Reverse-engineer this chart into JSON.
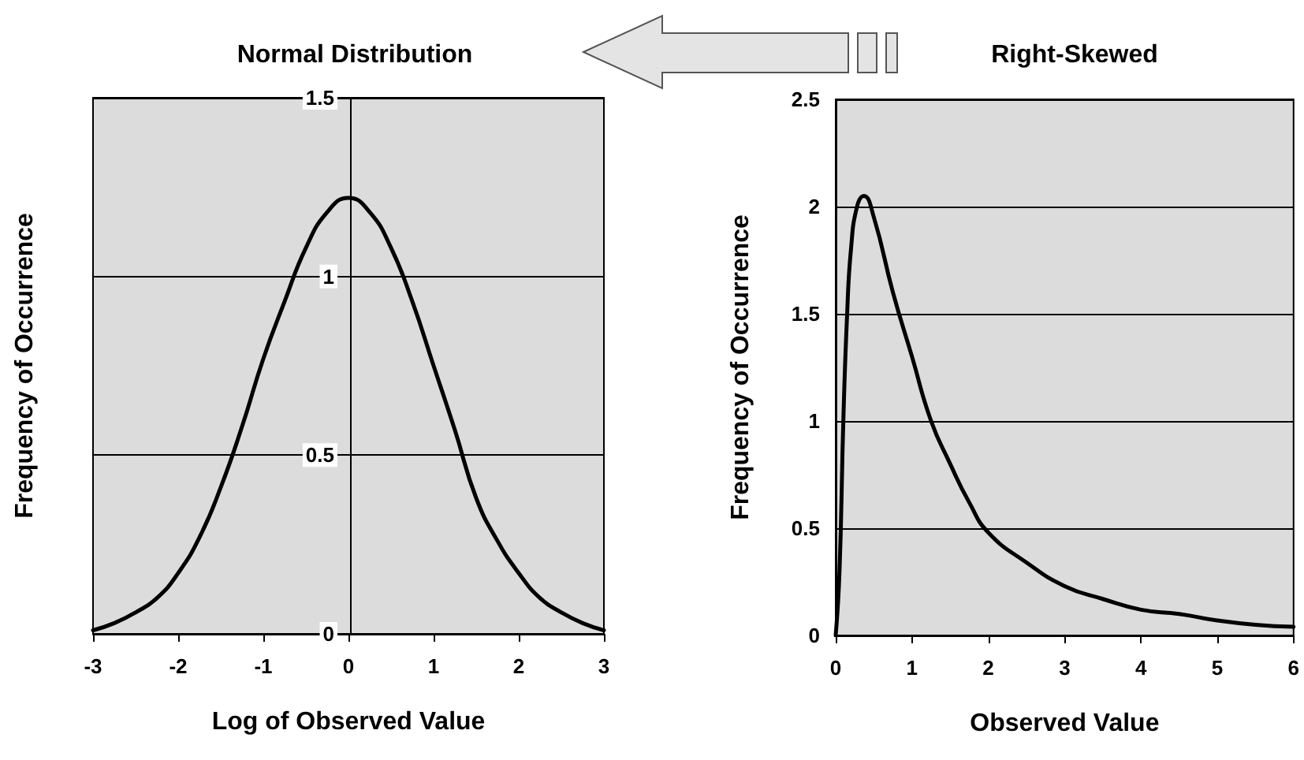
{
  "chart_data": [
    {
      "type": "line",
      "title": "Normal Distribution",
      "xlabel": "Log of Observed Value",
      "ylabel": "Frequency of Occurrence",
      "x": [
        -3,
        -2.75,
        -2.5,
        -2.25,
        -2,
        -1.75,
        -1.5,
        -1.25,
        -1,
        -0.75,
        -0.5,
        -0.25,
        0,
        0.25,
        0.5,
        0.75,
        1,
        1.25,
        1.5,
        1.75,
        2,
        2.25,
        2.5,
        2.75,
        3
      ],
      "series": [
        {
          "color": "#000000",
          "values": [
            0.01,
            0.03,
            0.06,
            0.1,
            0.17,
            0.27,
            0.41,
            0.58,
            0.77,
            0.93,
            1.08,
            1.18,
            1.22,
            1.18,
            1.08,
            0.93,
            0.75,
            0.57,
            0.38,
            0.26,
            0.17,
            0.1,
            0.06,
            0.03,
            0.01
          ]
        }
      ],
      "xlim": [
        -3,
        3
      ],
      "xticks": [
        -3,
        -2,
        -1,
        0,
        1,
        2,
        3
      ],
      "ylim": [
        0,
        1.5
      ],
      "yticks": [
        0,
        0.5,
        1,
        1.5
      ],
      "grid": "y",
      "marker": "none",
      "line_style": "solid"
    },
    {
      "type": "line",
      "title": "Right-Skewed",
      "xlabel": "Observed Value",
      "ylabel": "Frequency of Occurrence",
      "x": [
        0,
        0.05,
        0.1,
        0.15,
        0.2,
        0.28,
        0.37,
        0.5,
        0.75,
        1,
        1.25,
        1.5,
        1.75,
        2,
        2.5,
        3,
        3.5,
        4,
        4.5,
        5,
        5.5,
        6
      ],
      "series": [
        {
          "color": "#000000",
          "values": [
            0,
            0.3,
            1.0,
            1.5,
            1.8,
            2.0,
            2.05,
            1.95,
            1.6,
            1.3,
            1.0,
            0.8,
            0.62,
            0.48,
            0.34,
            0.23,
            0.17,
            0.12,
            0.1,
            0.07,
            0.05,
            0.04
          ]
        }
      ],
      "xlim": [
        0,
        6
      ],
      "xticks": [
        0,
        1,
        2,
        3,
        4,
        5,
        6
      ],
      "ylim": [
        0,
        2.5
      ],
      "yticks": [
        0,
        0.5,
        1,
        1.5,
        2,
        2.5
      ],
      "grid": "y",
      "marker": "none",
      "line_style": "solid"
    }
  ]
}
